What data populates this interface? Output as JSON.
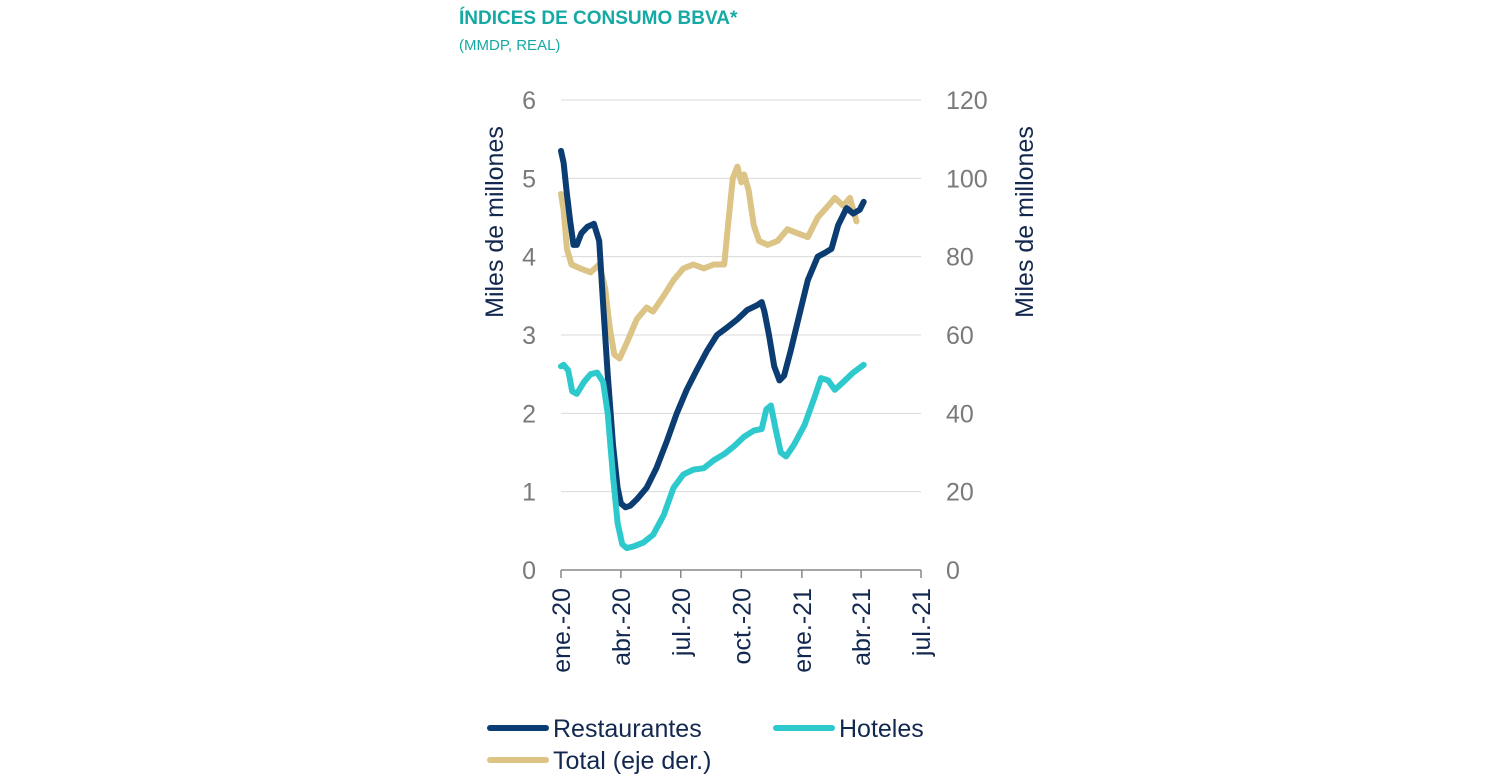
{
  "chart_data": {
    "type": "line",
    "title": "ÍNDICES DE CONSUMO BBVA*",
    "subtitle": "(MMDP, REAL)",
    "ylabel_left": "Miles de millones",
    "ylabel_right": "Miles de millones",
    "ylim_left": [
      0,
      6
    ],
    "ylim_right": [
      0,
      120
    ],
    "yticks_left": [
      0,
      1,
      2,
      3,
      4,
      5,
      6
    ],
    "yticks_right": [
      0,
      20,
      40,
      60,
      80,
      100,
      120
    ],
    "x_range": [
      "2020-01-01",
      "2021-07-01"
    ],
    "xticks": [
      {
        "date": "2020-01-01",
        "label": "ene.-20"
      },
      {
        "date": "2020-04-01",
        "label": "abr.-20"
      },
      {
        "date": "2020-07-01",
        "label": "jul.-20"
      },
      {
        "date": "2020-10-01",
        "label": "oct.-20"
      },
      {
        "date": "2021-01-01",
        "label": "ene.-21"
      },
      {
        "date": "2021-04-01",
        "label": "abr.-21"
      },
      {
        "date": "2021-07-01",
        "label": "jul.-21"
      }
    ],
    "grid": "horizontal",
    "legend_position": "bottom",
    "series": [
      {
        "name": "Restaurantes",
        "axis": "left",
        "color": "#0b3c72",
        "points": [
          [
            "2020-01-01",
            5.35
          ],
          [
            "2020-01-05",
            5.2
          ],
          [
            "2020-01-10",
            4.8
          ],
          [
            "2020-01-15",
            4.45
          ],
          [
            "2020-01-20",
            4.15
          ],
          [
            "2020-01-25",
            4.15
          ],
          [
            "2020-02-01",
            4.3
          ],
          [
            "2020-02-10",
            4.38
          ],
          [
            "2020-02-20",
            4.42
          ],
          [
            "2020-02-28",
            4.2
          ],
          [
            "2020-03-05",
            3.4
          ],
          [
            "2020-03-12",
            2.5
          ],
          [
            "2020-03-20",
            1.6
          ],
          [
            "2020-03-27",
            1.05
          ],
          [
            "2020-04-01",
            0.85
          ],
          [
            "2020-04-08",
            0.8
          ],
          [
            "2020-04-15",
            0.82
          ],
          [
            "2020-04-25",
            0.9
          ],
          [
            "2020-05-10",
            1.05
          ],
          [
            "2020-05-25",
            1.3
          ],
          [
            "2020-06-10",
            1.65
          ],
          [
            "2020-06-25",
            2.0
          ],
          [
            "2020-07-10",
            2.3
          ],
          [
            "2020-07-25",
            2.55
          ],
          [
            "2020-08-10",
            2.8
          ],
          [
            "2020-08-25",
            3.0
          ],
          [
            "2020-09-10",
            3.1
          ],
          [
            "2020-09-25",
            3.2
          ],
          [
            "2020-10-10",
            3.32
          ],
          [
            "2020-10-25",
            3.38
          ],
          [
            "2020-11-01",
            3.42
          ],
          [
            "2020-11-05",
            3.3
          ],
          [
            "2020-11-12",
            3.0
          ],
          [
            "2020-11-20",
            2.6
          ],
          [
            "2020-11-28",
            2.42
          ],
          [
            "2020-12-05",
            2.48
          ],
          [
            "2020-12-15",
            2.8
          ],
          [
            "2020-12-28",
            3.25
          ],
          [
            "2021-01-10",
            3.7
          ],
          [
            "2021-01-25",
            4.0
          ],
          [
            "2021-02-05",
            4.05
          ],
          [
            "2021-02-15",
            4.1
          ],
          [
            "2021-02-25",
            4.4
          ],
          [
            "2021-03-10",
            4.62
          ],
          [
            "2021-03-20",
            4.55
          ],
          [
            "2021-03-30",
            4.6
          ],
          [
            "2021-04-05",
            4.7
          ]
        ]
      },
      {
        "name": "Hoteles",
        "axis": "left",
        "color": "#2ec9cc",
        "points": [
          [
            "2020-01-01",
            2.6
          ],
          [
            "2020-01-05",
            2.62
          ],
          [
            "2020-01-12",
            2.55
          ],
          [
            "2020-01-18",
            2.28
          ],
          [
            "2020-01-25",
            2.25
          ],
          [
            "2020-02-05",
            2.4
          ],
          [
            "2020-02-15",
            2.5
          ],
          [
            "2020-02-25",
            2.52
          ],
          [
            "2020-03-05",
            2.4
          ],
          [
            "2020-03-12",
            2.0
          ],
          [
            "2020-03-20",
            1.2
          ],
          [
            "2020-03-27",
            0.6
          ],
          [
            "2020-04-03",
            0.33
          ],
          [
            "2020-04-10",
            0.28
          ],
          [
            "2020-04-20",
            0.3
          ],
          [
            "2020-05-05",
            0.35
          ],
          [
            "2020-05-20",
            0.45
          ],
          [
            "2020-06-05",
            0.7
          ],
          [
            "2020-06-20",
            1.05
          ],
          [
            "2020-07-05",
            1.22
          ],
          [
            "2020-07-20",
            1.28
          ],
          [
            "2020-08-05",
            1.3
          ],
          [
            "2020-08-20",
            1.4
          ],
          [
            "2020-09-05",
            1.48
          ],
          [
            "2020-09-20",
            1.58
          ],
          [
            "2020-10-05",
            1.7
          ],
          [
            "2020-10-20",
            1.78
          ],
          [
            "2020-11-01",
            1.8
          ],
          [
            "2020-11-08",
            2.05
          ],
          [
            "2020-11-15",
            2.1
          ],
          [
            "2020-11-22",
            1.8
          ],
          [
            "2020-11-30",
            1.5
          ],
          [
            "2020-12-08",
            1.45
          ],
          [
            "2020-12-20",
            1.6
          ],
          [
            "2021-01-05",
            1.85
          ],
          [
            "2021-01-20",
            2.2
          ],
          [
            "2021-01-30",
            2.45
          ],
          [
            "2021-02-10",
            2.42
          ],
          [
            "2021-02-20",
            2.3
          ],
          [
            "2021-03-05",
            2.4
          ],
          [
            "2021-03-20",
            2.52
          ],
          [
            "2021-04-05",
            2.62
          ]
        ]
      },
      {
        "name": "Total (eje der.)",
        "axis": "right",
        "color": "#dcc386",
        "points": [
          [
            "2020-01-01",
            96
          ],
          [
            "2020-01-05",
            92
          ],
          [
            "2020-01-10",
            82
          ],
          [
            "2020-01-17",
            78
          ],
          [
            "2020-01-30",
            77
          ],
          [
            "2020-02-15",
            76
          ],
          [
            "2020-02-28",
            78
          ],
          [
            "2020-03-08",
            72
          ],
          [
            "2020-03-15",
            62
          ],
          [
            "2020-03-22",
            55
          ],
          [
            "2020-03-30",
            54
          ],
          [
            "2020-04-10",
            58
          ],
          [
            "2020-04-25",
            64
          ],
          [
            "2020-05-10",
            67
          ],
          [
            "2020-05-20",
            66
          ],
          [
            "2020-06-05",
            70
          ],
          [
            "2020-06-20",
            74
          ],
          [
            "2020-07-05",
            77
          ],
          [
            "2020-07-20",
            78
          ],
          [
            "2020-08-05",
            77
          ],
          [
            "2020-08-20",
            78
          ],
          [
            "2020-09-05",
            78
          ],
          [
            "2020-09-12",
            90
          ],
          [
            "2020-09-18",
            100
          ],
          [
            "2020-09-25",
            103
          ],
          [
            "2020-10-01",
            99
          ],
          [
            "2020-10-05",
            101
          ],
          [
            "2020-10-12",
            97
          ],
          [
            "2020-10-20",
            88
          ],
          [
            "2020-10-28",
            84
          ],
          [
            "2020-11-10",
            83
          ],
          [
            "2020-11-25",
            84
          ],
          [
            "2020-12-10",
            87
          ],
          [
            "2020-12-25",
            86
          ],
          [
            "2021-01-10",
            85
          ],
          [
            "2021-01-25",
            90
          ],
          [
            "2021-02-10",
            93
          ],
          [
            "2021-02-20",
            95
          ],
          [
            "2021-03-05",
            93
          ],
          [
            "2021-03-15",
            95
          ],
          [
            "2021-03-25",
            89
          ]
        ]
      }
    ]
  }
}
